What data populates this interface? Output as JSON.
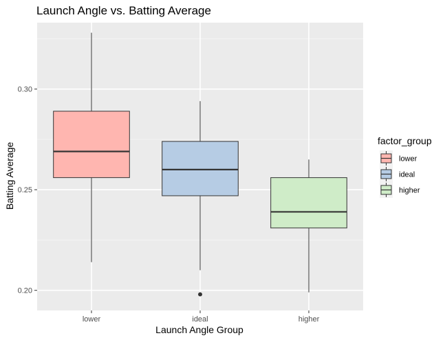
{
  "chart_data": {
    "type": "boxplot",
    "title": "Launch Angle vs. Batting Average",
    "xlabel": "Launch Angle Group",
    "ylabel": "Batting Average",
    "ylim": [
      0.19,
      0.333
    ],
    "yticks": [
      0.2,
      0.25,
      0.3
    ],
    "ytick_labels": [
      "0.20",
      "0.25",
      "0.30"
    ],
    "grid": true,
    "legend": {
      "title": "factor_group",
      "position": "right"
    },
    "categories": [
      "lower",
      "ideal",
      "higher"
    ],
    "series": [
      {
        "name": "lower",
        "color": "#F8766D",
        "fill": "#FFB6B0",
        "min": 0.214,
        "q1": 0.256,
        "median": 0.269,
        "q3": 0.289,
        "max": 0.328,
        "outliers": []
      },
      {
        "name": "ideal",
        "color": "#6495CD",
        "fill": "#B6CCE4",
        "min": 0.21,
        "q1": 0.247,
        "median": 0.26,
        "q3": 0.274,
        "max": 0.294,
        "outliers": [
          0.198
        ]
      },
      {
        "name": "higher",
        "color": "#7CC86C",
        "fill": "#CFECC8",
        "min": 0.199,
        "q1": 0.231,
        "median": 0.239,
        "q3": 0.256,
        "max": 0.265,
        "outliers": []
      }
    ]
  }
}
